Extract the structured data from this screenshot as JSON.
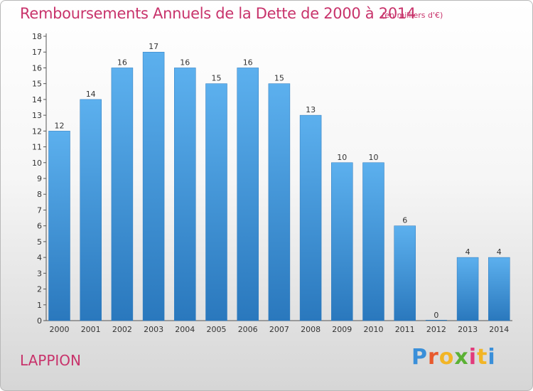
{
  "chart_data": {
    "type": "bar",
    "title": "Remboursements Annuels de la Dette de 2000 à 2014",
    "subtitle": "(en milliers d'€)",
    "categories": [
      "2000",
      "2001",
      "2002",
      "2003",
      "2004",
      "2005",
      "2006",
      "2007",
      "2008",
      "2009",
      "2010",
      "2011",
      "2012",
      "2013",
      "2014"
    ],
    "values": [
      12,
      14,
      16,
      17,
      16,
      15,
      16,
      15,
      13,
      10,
      10,
      6,
      0,
      4,
      4
    ],
    "data_labels": [
      "12",
      "14",
      "16",
      "17",
      "16",
      "15",
      "16",
      "15",
      "13",
      "10",
      "10",
      "6",
      "0",
      "4",
      "4"
    ],
    "yticks": [
      "0",
      "1",
      "2",
      "3",
      "4",
      "5",
      "6",
      "7",
      "8",
      "9",
      "10",
      "11",
      "12",
      "13",
      "14",
      "15",
      "16",
      "17",
      "18"
    ],
    "ylim": [
      0,
      18
    ],
    "xlabel": "",
    "ylabel": "",
    "grid": false,
    "bar_color": "#4b9fde",
    "bar_color_dark": "#2a78bd"
  },
  "commune": "LAPPION",
  "brand": {
    "letters": [
      "P",
      "r",
      "o",
      "x",
      "i",
      "t",
      "i"
    ],
    "colors": [
      "#3a8fd9",
      "#e8592c",
      "#f2b526",
      "#5bb134",
      "#e23a7b",
      "#f2b526",
      "#3a8fd9"
    ]
  },
  "title_color": "#c8336b"
}
